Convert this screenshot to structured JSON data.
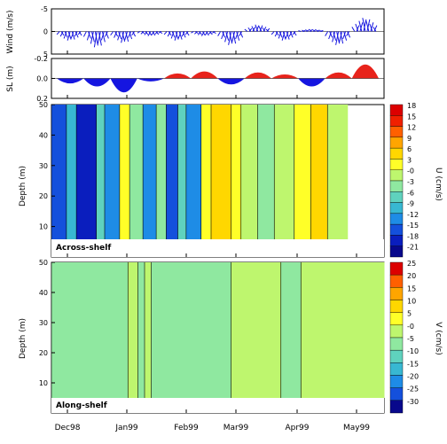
{
  "figure": {
    "x_tick_labels": [
      "Dec98",
      "Jan99",
      "Feb99",
      "Mar99",
      "Apr99",
      "May99"
    ]
  },
  "chart_data": [
    {
      "type": "line",
      "panel": "wind",
      "ylabel": "Wind (m/s)",
      "ylim": [
        -5,
        5
      ],
      "yticks": [
        "5",
        "0",
        "-5"
      ],
      "x": [
        "Dec98",
        "Dec98",
        "Jan99",
        "Jan99",
        "Feb99",
        "Feb99",
        "Mar99",
        "Mar99",
        "Apr99",
        "Apr99",
        "May99",
        "May99"
      ],
      "values": [
        -2,
        -3.5,
        -2.5,
        -1,
        -2,
        -1,
        -3,
        1.5,
        -2,
        0.5,
        -3,
        3
      ]
    },
    {
      "type": "area",
      "panel": "sea-level",
      "ylabel": "SL (m)",
      "ylim": [
        -0.2,
        0.2
      ],
      "yticks": [
        "0.2",
        "0.0",
        "-0.2"
      ],
      "positive_color": "#e8231b",
      "negative_color": "#1515e0",
      "x": [
        "Dec98",
        "Dec98",
        "Jan99",
        "Jan99",
        "Feb99",
        "Feb99",
        "Mar99",
        "Mar99",
        "Apr99",
        "Apr99",
        "May99",
        "May99"
      ],
      "values": [
        -0.05,
        -0.08,
        -0.14,
        -0.03,
        0.05,
        0.07,
        -0.06,
        0.06,
        0.04,
        -0.08,
        0.06,
        0.14
      ]
    },
    {
      "type": "heatmap",
      "panel": "across-shelf",
      "label": "Across-shelf",
      "ylabel": "Depth (m)",
      "ylim": [
        50,
        0
      ],
      "yticks": [
        "10",
        "20",
        "30",
        "40",
        "50"
      ],
      "colorbar_label": "U (cm/s)",
      "colorbar_ticks": [
        "18",
        "15",
        "12",
        "9",
        "6",
        "3",
        "-0",
        "-3",
        "-6",
        "-9",
        "-12",
        "-15",
        "-18",
        "-21"
      ],
      "colorbar_colors": [
        "#dc0000",
        "#f02000",
        "#ff6000",
        "#ffa500",
        "#ffd700",
        "#ffff28",
        "#bef66e",
        "#8fe8a0",
        "#5fd2be",
        "#38b8d2",
        "#1e8ce6",
        "#1450dc",
        "#0a1ebe",
        "#08088c"
      ],
      "columns": [
        {
          "t": "Dec98",
          "value": -15,
          "width": 0.045
        },
        {
          "t": "Dec98",
          "value": -9,
          "width": 0.03
        },
        {
          "t": "Dec98",
          "value": -18,
          "width": 0.06
        },
        {
          "t": "Dec98",
          "value": -6,
          "width": 0.025
        },
        {
          "t": "Dec98",
          "value": -12,
          "width": 0.045
        },
        {
          "t": "Jan99",
          "value": 3,
          "width": 0.03
        },
        {
          "t": "Jan99",
          "value": -3,
          "width": 0.04
        },
        {
          "t": "Jan99",
          "value": -12,
          "width": 0.04
        },
        {
          "t": "Jan99",
          "value": -3,
          "width": 0.03
        },
        {
          "t": "Jan99",
          "value": -15,
          "width": 0.035
        },
        {
          "t": "Feb99",
          "value": -6,
          "width": 0.025
        },
        {
          "t": "Feb99",
          "value": -12,
          "width": 0.045
        },
        {
          "t": "Feb99",
          "value": 3,
          "width": 0.03
        },
        {
          "t": "Feb99",
          "value": 6,
          "width": 0.06
        },
        {
          "t": "Mar99",
          "value": 3,
          "width": 0.03
        },
        {
          "t": "Mar99",
          "value": 0,
          "width": 0.05
        },
        {
          "t": "Mar99",
          "value": -3,
          "width": 0.05
        },
        {
          "t": "Apr99",
          "value": 0,
          "width": 0.06
        },
        {
          "t": "Apr99",
          "value": 3,
          "width": 0.05
        },
        {
          "t": "May99",
          "value": 6,
          "width": 0.05
        },
        {
          "t": "May99",
          "value": 0,
          "width": 0.06
        }
      ]
    },
    {
      "type": "heatmap",
      "panel": "along-shelf",
      "label": "Along-shelf",
      "ylabel": "Depth (m)",
      "ylim": [
        50,
        0
      ],
      "yticks": [
        "10",
        "20",
        "30",
        "40",
        "50"
      ],
      "colorbar_label": "V (cm/s)",
      "colorbar_ticks": [
        "25",
        "20",
        "15",
        "10",
        "5",
        "-0",
        "-5",
        "-10",
        "-15",
        "-20",
        "-25",
        "-30"
      ],
      "colorbar_colors": [
        "#dc0000",
        "#ff6000",
        "#ffa500",
        "#ffd700",
        "#ffff28",
        "#bef66e",
        "#8fe8a0",
        "#5fd2be",
        "#38b8d2",
        "#1e8ce6",
        "#1450dc",
        "#08088c"
      ],
      "columns": [
        {
          "t": "Dec98",
          "value": -5,
          "width": 0.23
        },
        {
          "t": "Jan99",
          "value": 0,
          "width": 0.03
        },
        {
          "t": "Jan99",
          "value": -5,
          "width": 0.02
        },
        {
          "t": "Jan99",
          "value": 0,
          "width": 0.02
        },
        {
          "t": "Jan99",
          "value": -5,
          "width": 0.24
        },
        {
          "t": "Mar99",
          "value": 0,
          "width": 0.15
        },
        {
          "t": "Apr99",
          "value": -5,
          "width": 0.06
        },
        {
          "t": "Apr99",
          "value": 0,
          "width": 0.25
        }
      ]
    }
  ],
  "labels": {
    "across": "Across-shelf",
    "along": "Along-shelf"
  }
}
